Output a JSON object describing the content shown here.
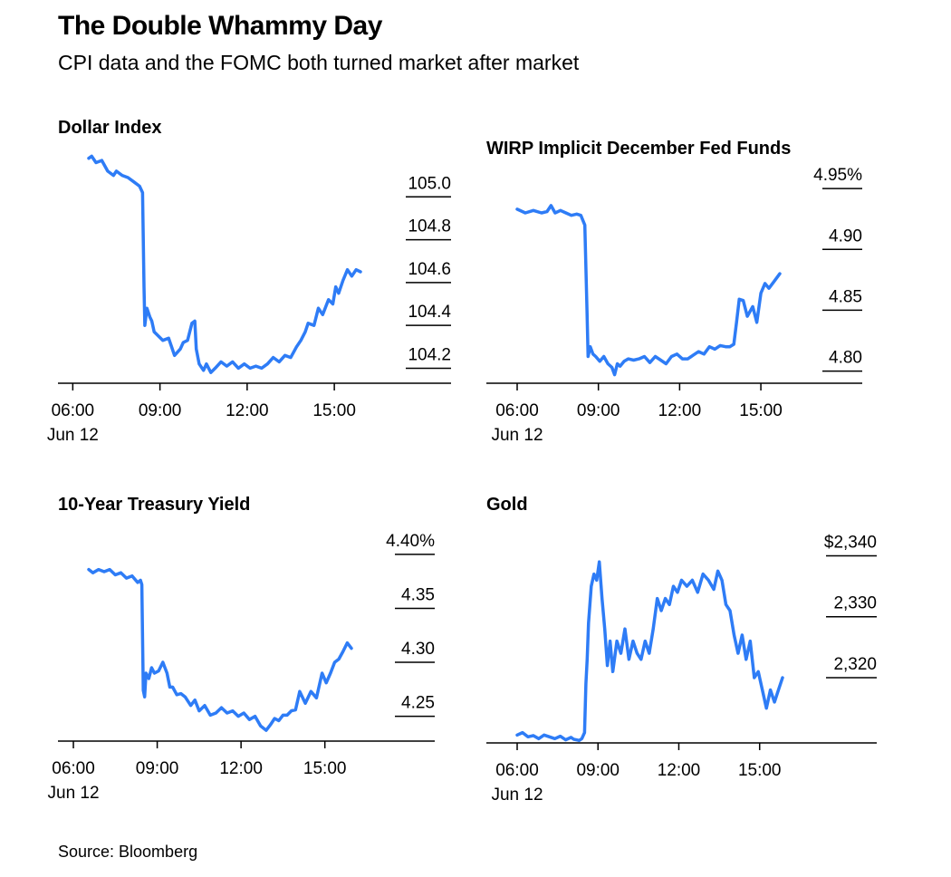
{
  "header": {
    "title": "The Double Whammy Day",
    "subtitle": "CPI data and the FOMC both turned market after market"
  },
  "footer": {
    "source": "Source: Bloomberg"
  },
  "colors": {
    "line": "#2e7cf6",
    "axis": "#000000",
    "background": "#ffffff"
  },
  "chart_data": [
    {
      "type": "line",
      "title": "Dollar Index",
      "xlabel": "",
      "ylabel": "",
      "xlim": [
        5.5,
        17.5
      ],
      "ylim": [
        104.13,
        105.2
      ],
      "x_ticks": [
        6,
        9,
        12,
        15
      ],
      "x_tick_labels": [
        "06:00",
        "09:00",
        "12:00",
        "15:00"
      ],
      "x_sublabel": "Jun 12",
      "y_ticks": [
        104.2,
        104.4,
        104.6,
        104.8,
        105.0
      ],
      "y_tick_labels": [
        "104.2",
        "104.4",
        "104.6",
        "104.8",
        "105.0"
      ],
      "series": [
        {
          "name": "Dollar Index",
          "x": [
            6.55,
            6.65,
            6.8,
            7.0,
            7.2,
            7.4,
            7.5,
            7.7,
            7.9,
            8.1,
            8.3,
            8.4,
            8.45,
            8.48,
            8.55,
            8.65,
            8.72,
            8.8,
            8.95,
            9.1,
            9.3,
            9.5,
            9.7,
            9.8,
            9.95,
            10.1,
            10.2,
            10.25,
            10.35,
            10.5,
            10.6,
            10.75,
            10.9,
            11.1,
            11.3,
            11.5,
            11.7,
            11.9,
            12.1,
            12.3,
            12.5,
            12.7,
            12.9,
            13.1,
            13.3,
            13.5,
            13.7,
            13.85,
            14.0,
            14.1,
            14.3,
            14.45,
            14.6,
            14.8,
            14.95,
            15.05,
            15.15,
            15.3,
            15.45,
            15.6,
            15.75,
            15.9
          ],
          "y": [
            105.18,
            105.19,
            105.16,
            105.17,
            105.12,
            105.1,
            105.12,
            105.1,
            105.09,
            105.07,
            105.05,
            105.02,
            104.58,
            104.4,
            104.48,
            104.44,
            104.42,
            104.37,
            104.35,
            104.33,
            104.34,
            104.26,
            104.29,
            104.32,
            104.33,
            104.41,
            104.42,
            104.29,
            104.22,
            104.19,
            104.22,
            104.18,
            104.2,
            104.23,
            104.21,
            104.23,
            104.2,
            104.22,
            104.2,
            104.21,
            104.2,
            104.22,
            104.25,
            104.23,
            104.26,
            104.25,
            104.3,
            104.33,
            104.37,
            104.41,
            104.4,
            104.48,
            104.45,
            104.52,
            104.5,
            104.58,
            104.55,
            104.61,
            104.66,
            104.63,
            104.66,
            104.65
          ]
        }
      ]
    },
    {
      "type": "line",
      "title": "WIRP Implicit December Fed Funds",
      "xlabel": "",
      "ylabel": "",
      "xlim": [
        5.3,
        18.3
      ],
      "ylim": [
        4.79,
        4.962
      ],
      "x_ticks": [
        6,
        9,
        12,
        15
      ],
      "x_tick_labels": [
        "06:00",
        "09:00",
        "12:00",
        "15:00"
      ],
      "x_sublabel": "Jun 12",
      "y_ticks": [
        4.8,
        4.85,
        4.9,
        4.95
      ],
      "y_tick_labels": [
        "4.80",
        "4.85",
        "4.90",
        "4.95%"
      ],
      "series": [
        {
          "name": "WIRP Implicit December Fed Funds",
          "x": [
            6.0,
            6.3,
            6.6,
            6.9,
            7.1,
            7.25,
            7.4,
            7.6,
            7.8,
            8.0,
            8.2,
            8.35,
            8.5,
            8.58,
            8.62,
            8.7,
            8.8,
            8.9,
            9.05,
            9.2,
            9.35,
            9.5,
            9.6,
            9.7,
            9.8,
            9.95,
            10.1,
            10.3,
            10.5,
            10.7,
            10.9,
            11.1,
            11.3,
            11.5,
            11.7,
            11.9,
            12.1,
            12.3,
            12.5,
            12.7,
            12.9,
            13.1,
            13.3,
            13.5,
            13.7,
            13.85,
            14.0,
            14.1,
            14.2,
            14.35,
            14.5,
            14.7,
            14.85,
            15.0,
            15.15,
            15.3,
            15.5,
            15.7
          ],
          "y": [
            4.933,
            4.93,
            4.932,
            4.93,
            4.931,
            4.936,
            4.93,
            4.932,
            4.93,
            4.928,
            4.929,
            4.928,
            4.92,
            4.85,
            4.812,
            4.82,
            4.814,
            4.812,
            4.808,
            4.812,
            4.806,
            4.803,
            4.797,
            4.806,
            4.804,
            4.808,
            4.81,
            4.809,
            4.81,
            4.812,
            4.807,
            4.812,
            4.809,
            4.806,
            4.812,
            4.814,
            4.81,
            4.81,
            4.813,
            4.816,
            4.814,
            4.82,
            4.818,
            4.821,
            4.82,
            4.82,
            4.822,
            4.84,
            4.859,
            4.858,
            4.845,
            4.853,
            4.84,
            4.864,
            4.872,
            4.868,
            4.874,
            4.88
          ]
        }
      ]
    },
    {
      "type": "line",
      "title": "10-Year Treasury Yield",
      "xlabel": "",
      "ylabel": "",
      "xlim": [
        5.5,
        18.0
      ],
      "ylim": [
        4.227,
        4.41
      ],
      "x_ticks": [
        6,
        9,
        12,
        15
      ],
      "x_tick_labels": [
        "06:00",
        "09:00",
        "12:00",
        "15:00"
      ],
      "x_sublabel": "Jun 12",
      "y_ticks": [
        4.25,
        4.3,
        4.35,
        4.4
      ],
      "y_tick_labels": [
        "4.25",
        "4.30",
        "4.35",
        "4.40%"
      ],
      "series": [
        {
          "name": "10-Year Treasury Yield",
          "x": [
            6.55,
            6.7,
            6.9,
            7.1,
            7.3,
            7.5,
            7.7,
            7.9,
            8.1,
            8.3,
            8.4,
            8.45,
            8.5,
            8.55,
            8.6,
            8.7,
            8.8,
            8.9,
            9.05,
            9.2,
            9.35,
            9.45,
            9.55,
            9.7,
            9.85,
            10.0,
            10.2,
            10.35,
            10.5,
            10.7,
            10.9,
            11.1,
            11.3,
            11.5,
            11.7,
            11.9,
            12.1,
            12.3,
            12.5,
            12.7,
            12.9,
            13.05,
            13.2,
            13.35,
            13.5,
            13.65,
            13.8,
            13.95,
            14.1,
            14.3,
            14.5,
            14.7,
            14.9,
            15.05,
            15.2,
            15.35,
            15.5,
            15.65,
            15.8,
            15.95
          ],
          "y": [
            4.386,
            4.383,
            4.386,
            4.384,
            4.386,
            4.381,
            4.383,
            4.378,
            4.38,
            4.374,
            4.376,
            4.372,
            4.274,
            4.268,
            4.29,
            4.285,
            4.295,
            4.29,
            4.292,
            4.3,
            4.29,
            4.277,
            4.277,
            4.27,
            4.271,
            4.268,
            4.26,
            4.265,
            4.255,
            4.26,
            4.251,
            4.253,
            4.258,
            4.253,
            4.255,
            4.25,
            4.253,
            4.247,
            4.25,
            4.241,
            4.237,
            4.242,
            4.248,
            4.246,
            4.251,
            4.251,
            4.255,
            4.256,
            4.273,
            4.262,
            4.273,
            4.267,
            4.29,
            4.281,
            4.29,
            4.3,
            4.303,
            4.31,
            4.318,
            4.313
          ]
        }
      ]
    },
    {
      "type": "line",
      "title": "Gold",
      "xlabel": "",
      "ylabel": "",
      "xlim": [
        5.3,
        18.3
      ],
      "ylim": [
        2309.3,
        2342.0
      ],
      "x_ticks": [
        6,
        9,
        12,
        15
      ],
      "x_tick_labels": [
        "06:00",
        "09:00",
        "12:00",
        "15:00"
      ],
      "x_sublabel": "Jun 12",
      "y_ticks": [
        2320,
        2330,
        2340
      ],
      "y_tick_labels": [
        "2,320",
        "2,330",
        "2,340"
      ],
      "y_tick_labels_display": [
        "2,320",
        "2,330",
        "$2,340"
      ],
      "series": [
        {
          "name": "Gold",
          "x": [
            6.0,
            6.2,
            6.4,
            6.6,
            6.8,
            7.0,
            7.2,
            7.4,
            7.6,
            7.8,
            8.0,
            8.1,
            8.2,
            8.3,
            8.4,
            8.5,
            8.55,
            8.6,
            8.65,
            8.75,
            8.85,
            8.95,
            9.05,
            9.15,
            9.25,
            9.35,
            9.45,
            9.55,
            9.7,
            9.85,
            10.0,
            10.15,
            10.3,
            10.45,
            10.6,
            10.75,
            10.9,
            11.05,
            11.2,
            11.35,
            11.5,
            11.65,
            11.8,
            11.95,
            12.1,
            12.3,
            12.5,
            12.7,
            12.9,
            13.1,
            13.3,
            13.45,
            13.6,
            13.75,
            13.9,
            14.05,
            14.2,
            14.35,
            14.5,
            14.65,
            14.8,
            14.95,
            15.1,
            15.25,
            15.4,
            15.55,
            15.7,
            15.85
          ],
          "y": [
            2310.6,
            2311.0,
            2310.3,
            2310.5,
            2310.0,
            2310.6,
            2310.3,
            2310.0,
            2310.4,
            2309.8,
            2310.2,
            2309.9,
            2309.8,
            2309.7,
            2310.0,
            2311.0,
            2319.0,
            2323.0,
            2329.0,
            2335.0,
            2337.0,
            2336.0,
            2339.0,
            2333.0,
            2328.0,
            2322.0,
            2326.0,
            2321.0,
            2326.0,
            2324.0,
            2328.0,
            2323.0,
            2326.0,
            2324.0,
            2323.0,
            2326.0,
            2324.0,
            2328.0,
            2333.0,
            2331.0,
            2333.0,
            2332.0,
            2335.0,
            2334.0,
            2336.0,
            2335.0,
            2336.0,
            2334.0,
            2337.0,
            2336.0,
            2334.5,
            2337.5,
            2336.0,
            2332.0,
            2331.0,
            2327.0,
            2324.0,
            2327.0,
            2323.0,
            2326.0,
            2320.0,
            2321.0,
            2318.0,
            2315.0,
            2318.0,
            2316.0,
            2318.0,
            2320.0
          ]
        }
      ]
    }
  ]
}
